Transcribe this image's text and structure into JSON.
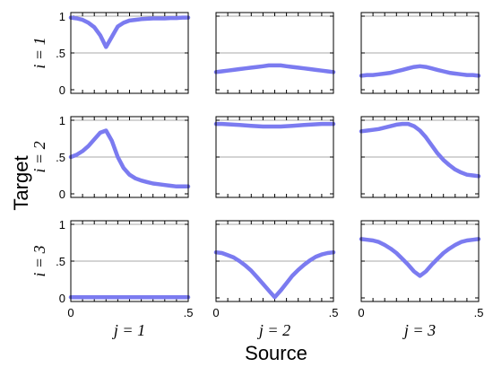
{
  "figure": {
    "ylabel": "Target",
    "xlabel": "Source",
    "line_color": "#7b7bf0"
  },
  "chart_data": {
    "type": "line",
    "layout": "3x3 small multiples",
    "rows": [
      "i = 1",
      "i = 2",
      "i = 3"
    ],
    "cols": [
      "j = 1",
      "j = 2",
      "j = 3"
    ],
    "xlim": [
      0,
      0.5
    ],
    "ylim": [
      0,
      1
    ],
    "xticks": [
      0,
      0.5
    ],
    "xtick_labels": [
      "0",
      ".5"
    ],
    "yticks": [
      0,
      0.5,
      1
    ],
    "ytick_labels": [
      "0",
      ".5",
      "1"
    ],
    "grid_y": [
      0.5,
      1
    ],
    "x": [
      0,
      0.025,
      0.05,
      0.075,
      0.1,
      0.125,
      0.15,
      0.175,
      0.2,
      0.225,
      0.25,
      0.275,
      0.3,
      0.325,
      0.35,
      0.375,
      0.4,
      0.425,
      0.45,
      0.475,
      0.5
    ],
    "panels": [
      [
        {
          "values": [
            0.98,
            0.97,
            0.95,
            0.91,
            0.85,
            0.74,
            0.58,
            0.72,
            0.86,
            0.91,
            0.94,
            0.95,
            0.96,
            0.965,
            0.97,
            0.97,
            0.97,
            0.975,
            0.975,
            0.98,
            0.98
          ]
        },
        {
          "values": [
            0.24,
            0.25,
            0.26,
            0.27,
            0.28,
            0.29,
            0.3,
            0.31,
            0.32,
            0.33,
            0.33,
            0.33,
            0.32,
            0.31,
            0.3,
            0.29,
            0.28,
            0.27,
            0.26,
            0.25,
            0.24
          ]
        },
        {
          "values": [
            0.19,
            0.2,
            0.2,
            0.21,
            0.22,
            0.23,
            0.25,
            0.27,
            0.29,
            0.31,
            0.32,
            0.31,
            0.29,
            0.27,
            0.25,
            0.23,
            0.22,
            0.21,
            0.2,
            0.2,
            0.19
          ]
        }
      ],
      [
        {
          "values": [
            0.5,
            0.53,
            0.58,
            0.65,
            0.74,
            0.83,
            0.86,
            0.72,
            0.5,
            0.35,
            0.26,
            0.21,
            0.18,
            0.16,
            0.14,
            0.13,
            0.12,
            0.11,
            0.1,
            0.1,
            0.1
          ]
        },
        {
          "values": [
            0.95,
            0.95,
            0.945,
            0.94,
            0.935,
            0.93,
            0.925,
            0.92,
            0.915,
            0.915,
            0.915,
            0.915,
            0.92,
            0.925,
            0.93,
            0.935,
            0.94,
            0.945,
            0.95,
            0.95,
            0.95
          ]
        },
        {
          "values": [
            0.85,
            0.86,
            0.87,
            0.88,
            0.9,
            0.92,
            0.94,
            0.95,
            0.95,
            0.92,
            0.86,
            0.77,
            0.66,
            0.55,
            0.46,
            0.39,
            0.33,
            0.29,
            0.26,
            0.25,
            0.24
          ]
        }
      ],
      [
        {
          "values": [
            0.01,
            0.01,
            0.01,
            0.01,
            0.01,
            0.01,
            0.01,
            0.01,
            0.01,
            0.01,
            0.01,
            0.01,
            0.01,
            0.01,
            0.01,
            0.01,
            0.01,
            0.01,
            0.01,
            0.01,
            0.01
          ]
        },
        {
          "values": [
            0.62,
            0.61,
            0.58,
            0.55,
            0.5,
            0.44,
            0.37,
            0.28,
            0.19,
            0.1,
            0.01,
            0.1,
            0.2,
            0.3,
            0.38,
            0.45,
            0.51,
            0.56,
            0.59,
            0.61,
            0.62
          ]
        },
        {
          "values": [
            0.8,
            0.79,
            0.78,
            0.76,
            0.72,
            0.67,
            0.61,
            0.53,
            0.45,
            0.36,
            0.3,
            0.36,
            0.45,
            0.53,
            0.61,
            0.67,
            0.72,
            0.76,
            0.78,
            0.79,
            0.8
          ]
        }
      ]
    ]
  }
}
